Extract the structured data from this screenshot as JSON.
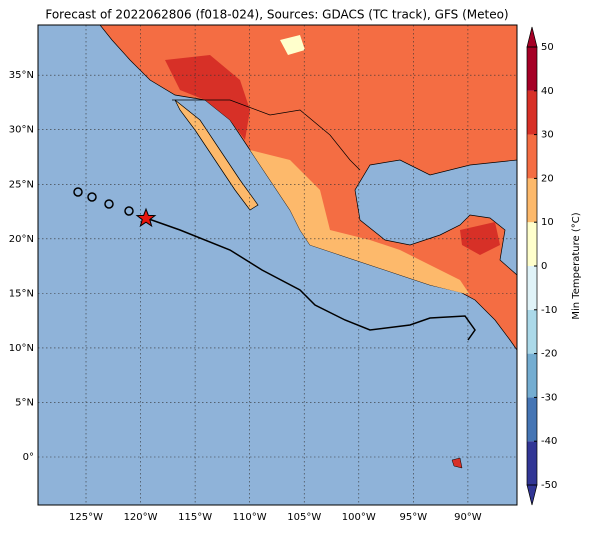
{
  "map": {
    "title": "Forecast of 2022062806 (f018-024), Sources: GDACS (TC track), GFS (Meteo)",
    "xlim": [
      -129.4,
      -85.5
    ],
    "ylim": [
      -4.4,
      39.6
    ],
    "xticks": [
      {
        "value": -125,
        "label": "125°W"
      },
      {
        "value": -120,
        "label": "120°W"
      },
      {
        "value": -115,
        "label": "115°W"
      },
      {
        "value": -110,
        "label": "110°W"
      },
      {
        "value": -105,
        "label": "105°W"
      },
      {
        "value": -100,
        "label": "100°W"
      },
      {
        "value": -95,
        "label": "95°W"
      },
      {
        "value": -90,
        "label": "90°W"
      }
    ],
    "yticks": [
      {
        "value": 0,
        "label": "0°"
      },
      {
        "value": 5,
        "label": "5°N"
      },
      {
        "value": 10,
        "label": "10°N"
      },
      {
        "value": 15,
        "label": "15°N"
      },
      {
        "value": 20,
        "label": "20°N"
      },
      {
        "value": 25,
        "label": "25°N"
      },
      {
        "value": 30,
        "label": "30°N"
      },
      {
        "value": 35,
        "label": "35°N"
      }
    ],
    "colorbar": {
      "label": "Min Temperature (°C)",
      "ticks": [
        -50,
        -40,
        -30,
        -20,
        -10,
        0,
        10,
        20,
        30,
        40,
        50
      ],
      "colors": [
        "#313695",
        "#4575b4",
        "#74add1",
        "#abd9e9",
        "#e0f3f8",
        "#ffffcc",
        "#fdb96b",
        "#f46d43",
        "#d73027",
        "#a50026"
      ]
    }
  }
}
